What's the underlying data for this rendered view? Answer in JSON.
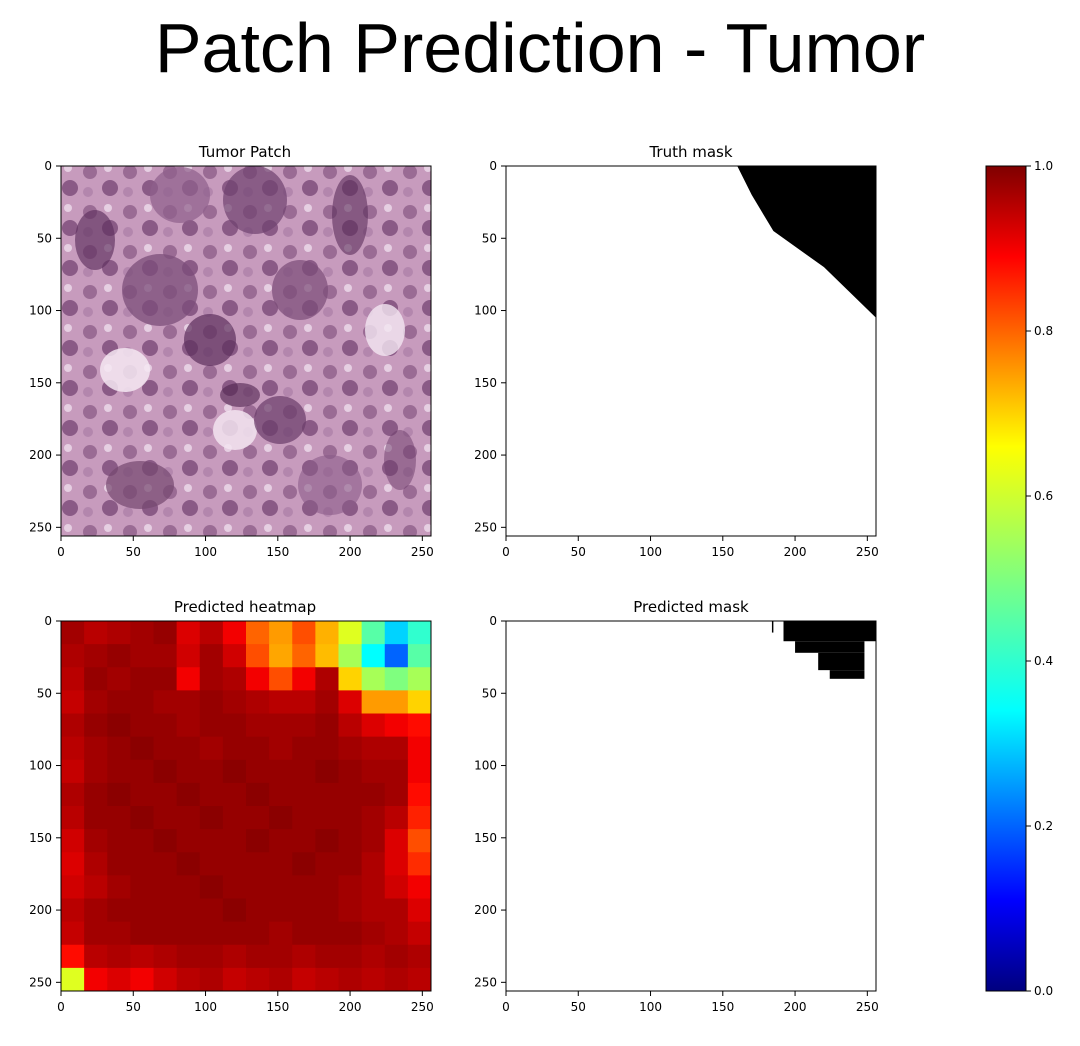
{
  "page_title": "Patch Prediction - Tumor",
  "chart_data": [
    {
      "type": "image",
      "title": "Tumor Patch",
      "content": "H&E-stained tissue patch (purple/pink cells)",
      "x_ticks": [
        0,
        50,
        100,
        150,
        200,
        250
      ],
      "y_ticks": [
        0,
        50,
        100,
        150,
        200,
        250
      ],
      "xlim": [
        0,
        256
      ],
      "ylim": [
        256,
        0
      ]
    },
    {
      "type": "heatmap",
      "title": "Truth mask",
      "colormap": "gray",
      "description": "binary mask: black triangular region in upper-right corner, white elsewhere",
      "mask_polygon": [
        [
          160,
          0
        ],
        [
          256,
          0
        ],
        [
          256,
          105
        ],
        [
          220,
          70
        ],
        [
          185,
          45
        ],
        [
          170,
          20
        ]
      ],
      "mask_color": "#000000",
      "background_color": "#ffffff",
      "x_ticks": [
        0,
        50,
        100,
        150,
        200,
        250
      ],
      "y_ticks": [
        0,
        50,
        100,
        150,
        200,
        250
      ],
      "xlim": [
        0,
        256
      ],
      "ylim": [
        256,
        0
      ]
    },
    {
      "type": "heatmap",
      "title": "Predicted heatmap",
      "colormap": "jet",
      "vmin": 0.0,
      "vmax": 1.0,
      "grid_size": 16,
      "cell_size": 16,
      "values": [
        [
          0.97,
          0.95,
          0.96,
          0.97,
          0.98,
          0.92,
          0.95,
          0.9,
          0.8,
          0.75,
          0.82,
          0.73,
          0.62,
          0.45,
          0.3,
          0.4
        ],
        [
          0.96,
          0.97,
          0.98,
          0.97,
          0.97,
          0.93,
          0.97,
          0.93,
          0.82,
          0.74,
          0.8,
          0.72,
          0.55,
          0.34,
          0.2,
          0.45
        ],
        [
          0.95,
          0.98,
          0.97,
          0.98,
          0.98,
          0.9,
          0.97,
          0.96,
          0.9,
          0.82,
          0.9,
          0.96,
          0.7,
          0.55,
          0.5,
          0.55
        ],
        [
          0.94,
          0.97,
          0.98,
          0.98,
          0.97,
          0.97,
          0.98,
          0.97,
          0.96,
          0.95,
          0.95,
          0.97,
          0.92,
          0.75,
          0.75,
          0.7
        ],
        [
          0.96,
          0.98,
          0.99,
          0.98,
          0.98,
          0.97,
          0.98,
          0.98,
          0.97,
          0.97,
          0.97,
          0.98,
          0.95,
          0.92,
          0.9,
          0.88
        ],
        [
          0.95,
          0.97,
          0.98,
          0.99,
          0.98,
          0.98,
          0.97,
          0.98,
          0.98,
          0.97,
          0.98,
          0.98,
          0.97,
          0.96,
          0.96,
          0.9
        ],
        [
          0.94,
          0.97,
          0.98,
          0.98,
          0.99,
          0.98,
          0.98,
          0.99,
          0.98,
          0.98,
          0.98,
          0.99,
          0.98,
          0.97,
          0.97,
          0.9
        ],
        [
          0.96,
          0.98,
          0.99,
          0.98,
          0.98,
          0.99,
          0.98,
          0.98,
          0.99,
          0.98,
          0.98,
          0.98,
          0.98,
          0.98,
          0.97,
          0.88
        ],
        [
          0.95,
          0.98,
          0.98,
          0.99,
          0.98,
          0.98,
          0.99,
          0.98,
          0.98,
          0.99,
          0.98,
          0.98,
          0.98,
          0.97,
          0.95,
          0.86
        ],
        [
          0.93,
          0.97,
          0.98,
          0.98,
          0.99,
          0.98,
          0.98,
          0.98,
          0.99,
          0.98,
          0.98,
          0.99,
          0.98,
          0.97,
          0.92,
          0.82
        ],
        [
          0.92,
          0.96,
          0.98,
          0.98,
          0.98,
          0.99,
          0.98,
          0.98,
          0.98,
          0.98,
          0.99,
          0.98,
          0.98,
          0.96,
          0.92,
          0.85
        ],
        [
          0.93,
          0.95,
          0.97,
          0.98,
          0.98,
          0.98,
          0.99,
          0.98,
          0.98,
          0.98,
          0.98,
          0.98,
          0.97,
          0.96,
          0.93,
          0.9
        ],
        [
          0.95,
          0.97,
          0.98,
          0.98,
          0.98,
          0.98,
          0.98,
          0.99,
          0.98,
          0.98,
          0.98,
          0.98,
          0.97,
          0.96,
          0.96,
          0.92
        ],
        [
          0.94,
          0.97,
          0.97,
          0.98,
          0.98,
          0.98,
          0.98,
          0.98,
          0.98,
          0.97,
          0.98,
          0.98,
          0.98,
          0.97,
          0.96,
          0.94
        ],
        [
          0.88,
          0.95,
          0.96,
          0.95,
          0.96,
          0.97,
          0.97,
          0.96,
          0.97,
          0.97,
          0.96,
          0.97,
          0.97,
          0.96,
          0.97,
          0.96
        ],
        [
          0.62,
          0.9,
          0.92,
          0.9,
          0.93,
          0.95,
          0.96,
          0.94,
          0.95,
          0.96,
          0.94,
          0.95,
          0.96,
          0.95,
          0.96,
          0.95
        ]
      ],
      "x_ticks": [
        0,
        50,
        100,
        150,
        200,
        250
      ],
      "y_ticks": [
        0,
        50,
        100,
        150,
        200,
        250
      ],
      "xlim": [
        0,
        256
      ],
      "ylim": [
        256,
        0
      ]
    },
    {
      "type": "heatmap",
      "title": "Predicted mask",
      "colormap": "gray",
      "description": "binary mask: small black region near top-right, white elsewhere",
      "mask_rects": [
        [
          184,
          0,
          1,
          8
        ],
        [
          192,
          0,
          64,
          14
        ],
        [
          200,
          14,
          48,
          8
        ],
        [
          216,
          22,
          32,
          12
        ],
        [
          224,
          34,
          24,
          6
        ]
      ],
      "mask_color": "#000000",
      "background_color": "#ffffff",
      "x_ticks": [
        0,
        50,
        100,
        150,
        200,
        250
      ],
      "y_ticks": [
        0,
        50,
        100,
        150,
        200,
        250
      ],
      "xlim": [
        0,
        256
      ],
      "ylim": [
        256,
        0
      ]
    },
    {
      "type": "colorbar",
      "colormap": "jet",
      "vmin": 0.0,
      "vmax": 1.0,
      "tick_labels": [
        "0.0",
        "0.2",
        "0.4",
        "0.6",
        "0.8",
        "1.0"
      ],
      "ticks": [
        0.0,
        0.2,
        0.4,
        0.6,
        0.8,
        1.0
      ]
    }
  ]
}
